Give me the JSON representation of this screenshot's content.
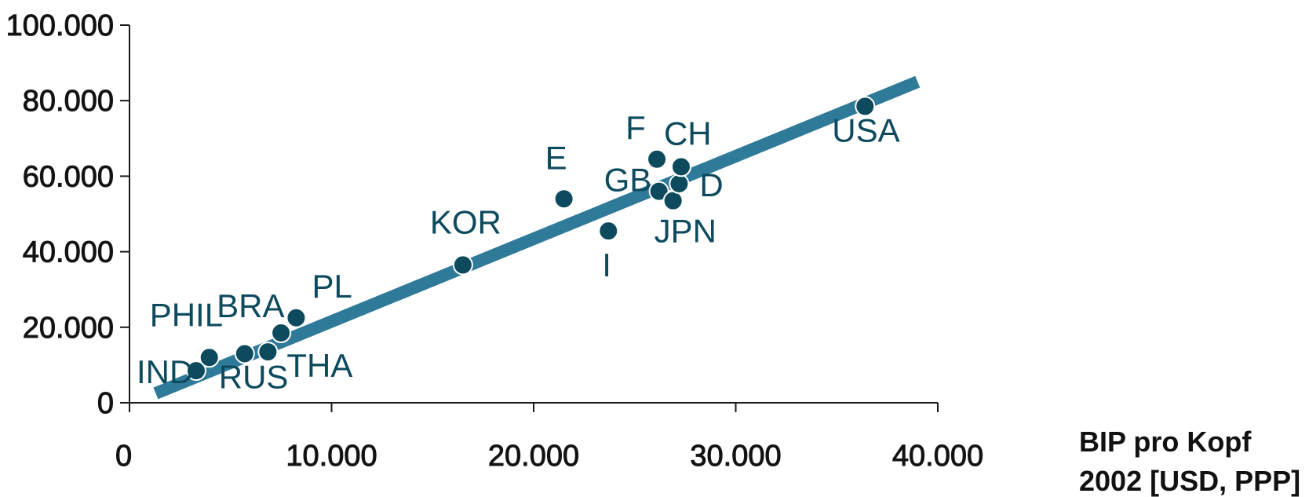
{
  "chart_data": {
    "type": "scatter",
    "title": "",
    "xlabel": [
      "BIP pro Kopf",
      "2002 [USD, PPP]"
    ],
    "ylabel": "",
    "xlim": [
      0,
      40000
    ],
    "ylim": [
      0,
      100000
    ],
    "x_ticks": [
      0,
      10000,
      20000,
      30000,
      40000
    ],
    "x_tick_labels": [
      "0",
      "10.000",
      "20.000",
      "30.000",
      "40.000"
    ],
    "y_ticks": [
      0,
      20000,
      40000,
      60000,
      80000,
      100000
    ],
    "y_tick_labels": [
      "0",
      "20.000",
      "40.000",
      "60.000",
      "80.000",
      "100.000"
    ],
    "points": [
      {
        "label": "IND",
        "x": 3300,
        "y": 8500
      },
      {
        "label": "PHIL",
        "x": 3950,
        "y": 12000
      },
      {
        "label": "RUS",
        "x": 5700,
        "y": 13000
      },
      {
        "label": "THA",
        "x": 6850,
        "y": 13500
      },
      {
        "label": "BRA",
        "x": 7500,
        "y": 18500
      },
      {
        "label": "PL",
        "x": 8250,
        "y": 22500
      },
      {
        "label": "KOR",
        "x": 16500,
        "y": 36500
      },
      {
        "label": "E",
        "x": 21500,
        "y": 54000
      },
      {
        "label": "I",
        "x": 23700,
        "y": 45500
      },
      {
        "label": "F",
        "x": 26100,
        "y": 64500
      },
      {
        "label": "GB",
        "x": 26200,
        "y": 56000
      },
      {
        "label": "JPN",
        "x": 26900,
        "y": 53500
      },
      {
        "label": "D",
        "x": 27200,
        "y": 58000
      },
      {
        "label": "CH",
        "x": 27300,
        "y": 62500
      },
      {
        "label": "USA",
        "x": 36400,
        "y": 78500
      }
    ],
    "trendline": {
      "x": [
        1300,
        39000
      ],
      "y": [
        2500,
        85000
      ]
    },
    "grid": false,
    "legend": "none"
  },
  "colors": {
    "point_fill": "#0d4a5e",
    "point_stroke": "#ffffff",
    "trendline": "#2f7a98",
    "label": "#0d4a5e",
    "axis": "#1a1a1a"
  }
}
